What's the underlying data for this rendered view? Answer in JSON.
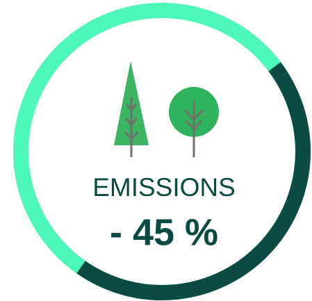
{
  "chart_data": {
    "type": "gauge",
    "label": "EMISSIONS",
    "value": -45,
    "value_label": "- 45 %",
    "color": "#0b4b44",
    "track_color": "#4cf7b8"
  }
}
